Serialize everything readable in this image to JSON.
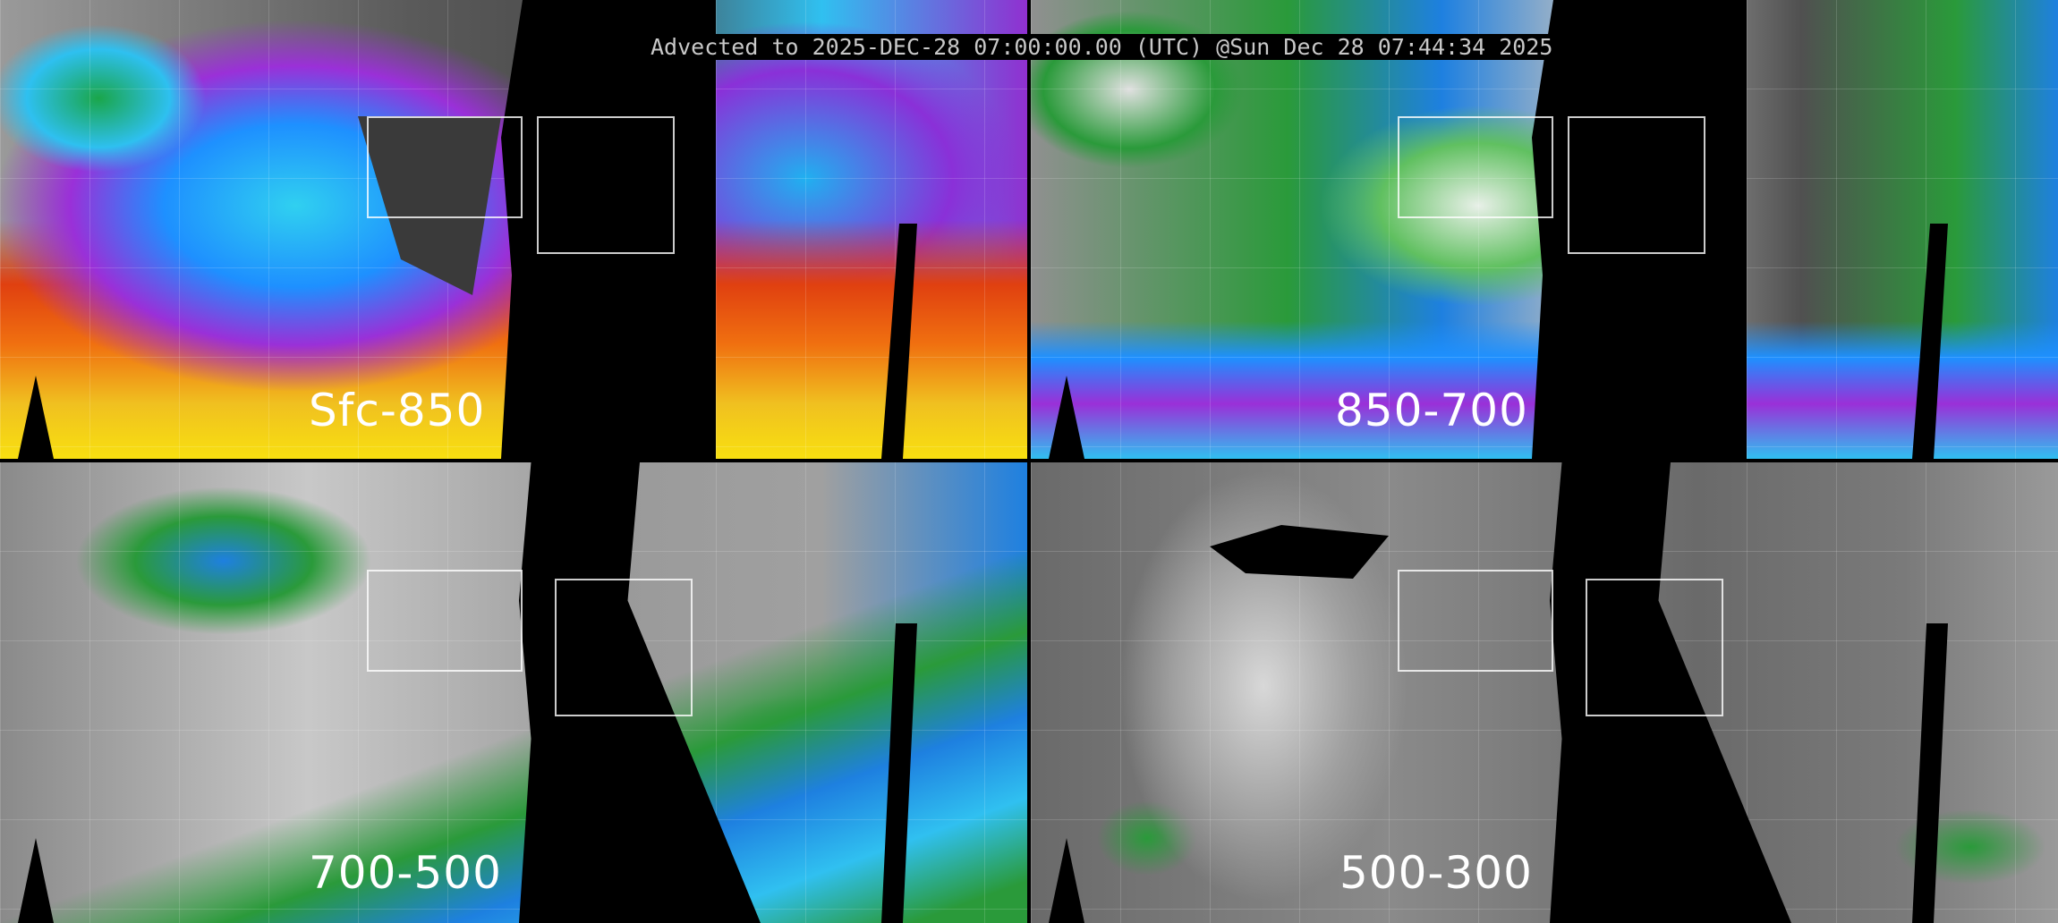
{
  "title": "Advected to 2025-DEC-28 07:00:00.00 (UTC) @Sun Dec 28 07:44:34 2025",
  "panels": [
    {
      "label": "Sfc-850"
    },
    {
      "label": "850-700"
    },
    {
      "label": "700-500"
    },
    {
      "label": "500-300"
    }
  ],
  "colors": {
    "background": "#000000",
    "title_text": "#c8c8c8",
    "label_text": "#ffffff",
    "coastlines": "#ffffff",
    "scale": [
      "#808080",
      "#2a9a3a",
      "#1e80e0",
      "#30c0f0",
      "#9a30d8",
      "#e04010",
      "#f07010",
      "#f8e010"
    ]
  }
}
